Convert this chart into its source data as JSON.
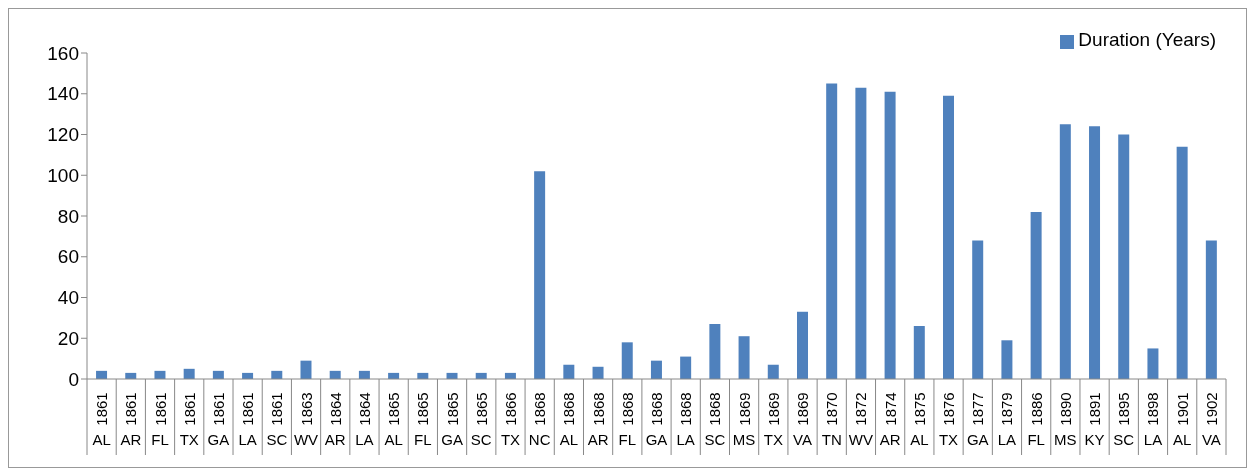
{
  "chart_data": {
    "type": "bar",
    "categories": [
      "1861 AL",
      "1861 AR",
      "1861 FL",
      "1861 TX",
      "1861 GA",
      "1861 LA",
      "1861 SC",
      "1863 WV",
      "1864 AR",
      "1864 LA",
      "1865 AL",
      "1865 FL",
      "1865 GA",
      "1865 SC",
      "1866 TX",
      "1868 NC",
      "1868 AL",
      "1868 AR",
      "1868 FL",
      "1868 GA",
      "1868 LA",
      "1868 SC",
      "1869 MS",
      "1869 TX",
      "1869 VA",
      "1870 TN",
      "1872 WV",
      "1874 AR",
      "1875 AL",
      "1876 TX",
      "1877 GA",
      "1879 LA",
      "1886 FL",
      "1890 MS",
      "1891 KY",
      "1895 SC",
      "1898 LA",
      "1901 AL",
      "1902 VA"
    ],
    "series": [
      {
        "name": "Duration (Years)",
        "color": "#4f81bd",
        "values": [
          4,
          3,
          4,
          5,
          4,
          3,
          4,
          9,
          4,
          4,
          3,
          3,
          3,
          3,
          3,
          102,
          7,
          6,
          18,
          9,
          11,
          27,
          21,
          7,
          33,
          145,
          143,
          141,
          26,
          139,
          68,
          19,
          82,
          125,
          124,
          120,
          15,
          114,
          68
        ]
      }
    ],
    "ylim": [
      0,
      160
    ],
    "yticks": [
      0,
      20,
      40,
      60,
      80,
      100,
      120,
      140,
      160
    ],
    "grid": false,
    "legend": "top right"
  }
}
